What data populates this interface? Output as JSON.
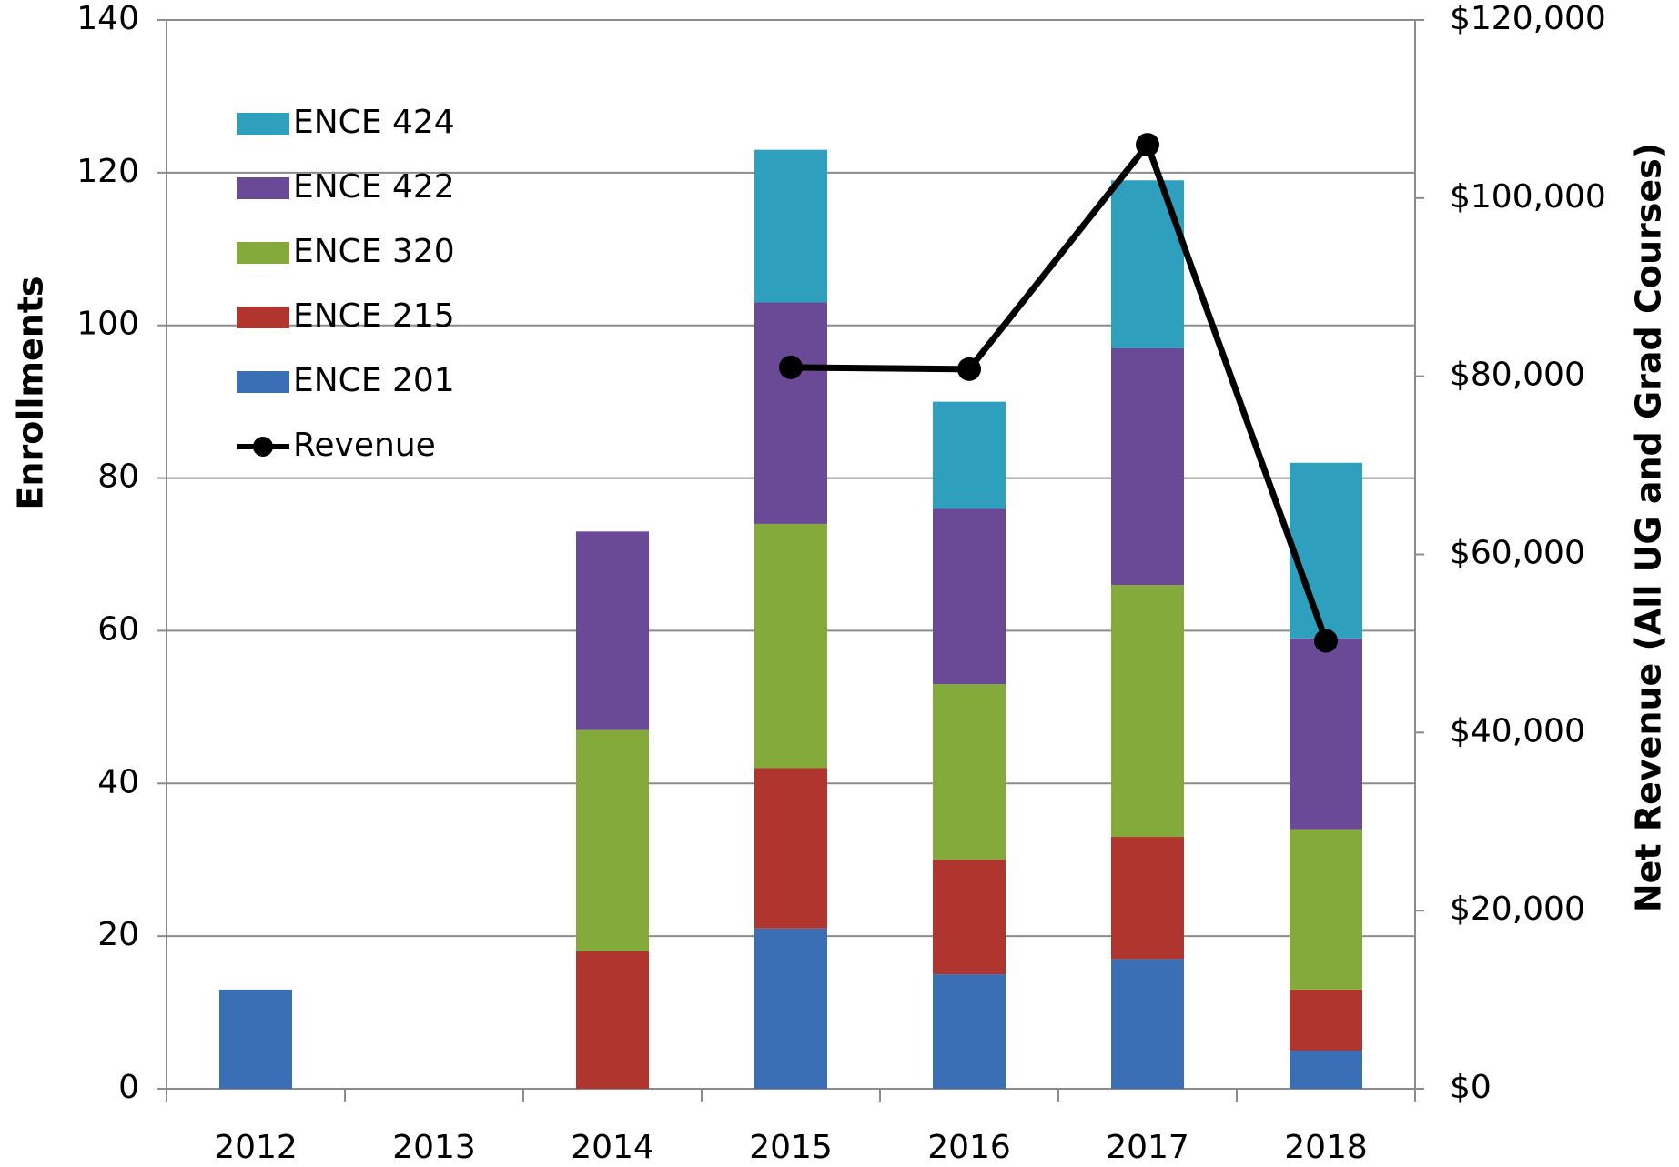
{
  "chart_data": {
    "type": "bar",
    "stacked": true,
    "categories": [
      "2012",
      "2013",
      "2014",
      "2015",
      "2016",
      "2017",
      "2018"
    ],
    "ylabel": "Enrollments",
    "y2label": "Net Revenue (All UG and Grad Courses)",
    "ylim": [
      0,
      140
    ],
    "yticks": [
      0,
      20,
      40,
      60,
      80,
      100,
      120,
      140
    ],
    "y2lim": [
      0,
      120000
    ],
    "y2ticks": [
      {
        "value": 0,
        "label": "$0"
      },
      {
        "value": 20000,
        "label": "$20,000"
      },
      {
        "value": 40000,
        "label": "$40,000"
      },
      {
        "value": 60000,
        "label": "$60,000"
      },
      {
        "value": 80000,
        "label": "$80,000"
      },
      {
        "value": 100000,
        "label": "$100,000"
      },
      {
        "value": 120000,
        "label": "$120,000"
      }
    ],
    "grid": true,
    "legend": "upper left",
    "series": [
      {
        "name": "ENCE 201",
        "color": "#3a6fb5",
        "values": [
          13,
          0,
          0,
          21,
          15,
          17,
          5
        ]
      },
      {
        "name": "ENCE 215",
        "color": "#b0352f",
        "values": [
          0,
          0,
          18,
          21,
          15,
          16,
          8
        ]
      },
      {
        "name": "ENCE 320",
        "color": "#84aa3b",
        "values": [
          0,
          0,
          29,
          32,
          23,
          33,
          21
        ]
      },
      {
        "name": "ENCE 422",
        "color": "#6a4a96",
        "values": [
          0,
          0,
          26,
          29,
          23,
          31,
          25
        ]
      },
      {
        "name": "ENCE 424",
        "color": "#2e9fbd",
        "values": [
          0,
          0,
          0,
          20,
          14,
          22,
          23
        ]
      },
      {
        "name": "Revenue",
        "color": "#000000",
        "type": "line",
        "axis": "y2",
        "values": [
          null,
          null,
          null,
          81000,
          80800,
          106000,
          50300
        ]
      }
    ]
  }
}
